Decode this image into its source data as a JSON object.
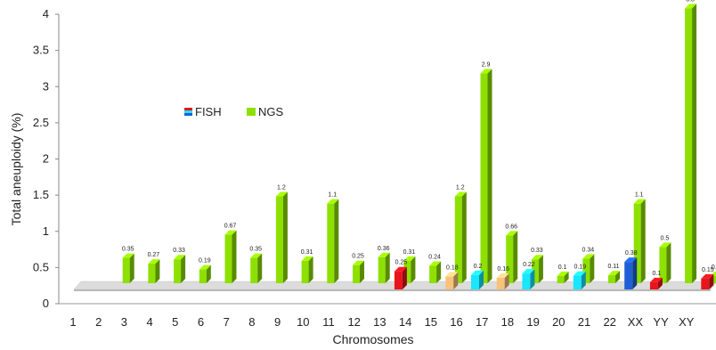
{
  "chart_data": {
    "type": "bar",
    "title": "",
    "xlabel": "Chromosomes",
    "ylabel": "Total aneuploidy (%)",
    "ylim": [
      0,
      4
    ],
    "yticks": [
      "0",
      "0.5",
      "1",
      "1.5",
      "2",
      "2.5",
      "3",
      "3.5",
      "4"
    ],
    "categories": [
      "1",
      "2",
      "3",
      "4",
      "5",
      "6",
      "7",
      "8",
      "9",
      "10",
      "11",
      "12",
      "13",
      "14",
      "15",
      "16",
      "17",
      "18",
      "19",
      "20",
      "21",
      "22",
      "XX",
      "YY",
      "XY"
    ],
    "legend_position": "upper-left",
    "series": [
      {
        "name": "FISH",
        "values": [
          null,
          null,
          null,
          null,
          null,
          null,
          null,
          null,
          null,
          null,
          null,
          null,
          0.25,
          null,
          0.18,
          0.2,
          0.16,
          0.22,
          null,
          0.19,
          null,
          0.38,
          0.1,
          null,
          0.15
        ],
        "labels": [
          "",
          "",
          "",
          "",
          "",
          "",
          "",
          "",
          "",
          "",
          "",
          "",
          "0.25",
          "",
          "0.18",
          "0.2",
          "0.16",
          "0.22",
          "",
          "0.19",
          "",
          "0.38",
          "0.1",
          "",
          "0.15"
        ],
        "colors": [
          null,
          null,
          null,
          null,
          null,
          null,
          null,
          null,
          null,
          null,
          null,
          null,
          "#e8141c",
          null,
          "#f7c27a",
          "#19e6ff",
          "#f7c27a",
          "#19e6ff",
          null,
          "#19e6ff",
          null,
          "#1f5fd6",
          "#e8141c",
          null,
          "#e8141c"
        ]
      },
      {
        "name": "NGS",
        "values": [
          null,
          0.35,
          0.27,
          0.33,
          0.19,
          0.67,
          0.35,
          1.2,
          0.31,
          1.1,
          0.25,
          0.36,
          0.31,
          0.24,
          1.2,
          2.9,
          0.66,
          0.33,
          0.1,
          0.34,
          0.11,
          1.1,
          0.5,
          3.8,
          0.1
        ],
        "labels": [
          "",
          "0.35",
          "0.27",
          "0.33",
          "0.19",
          "0.67",
          "0.35",
          "1.2",
          "0.31",
          "1.1",
          "0.25",
          "0.36",
          "0.31",
          "0.24",
          "1.2",
          "2.9",
          "0.66",
          "0.33",
          "0.1",
          "0.34",
          "0.11",
          "1.1",
          "0.5",
          "3.8",
          "0.1"
        ],
        "color": "#8ee000"
      }
    ]
  }
}
